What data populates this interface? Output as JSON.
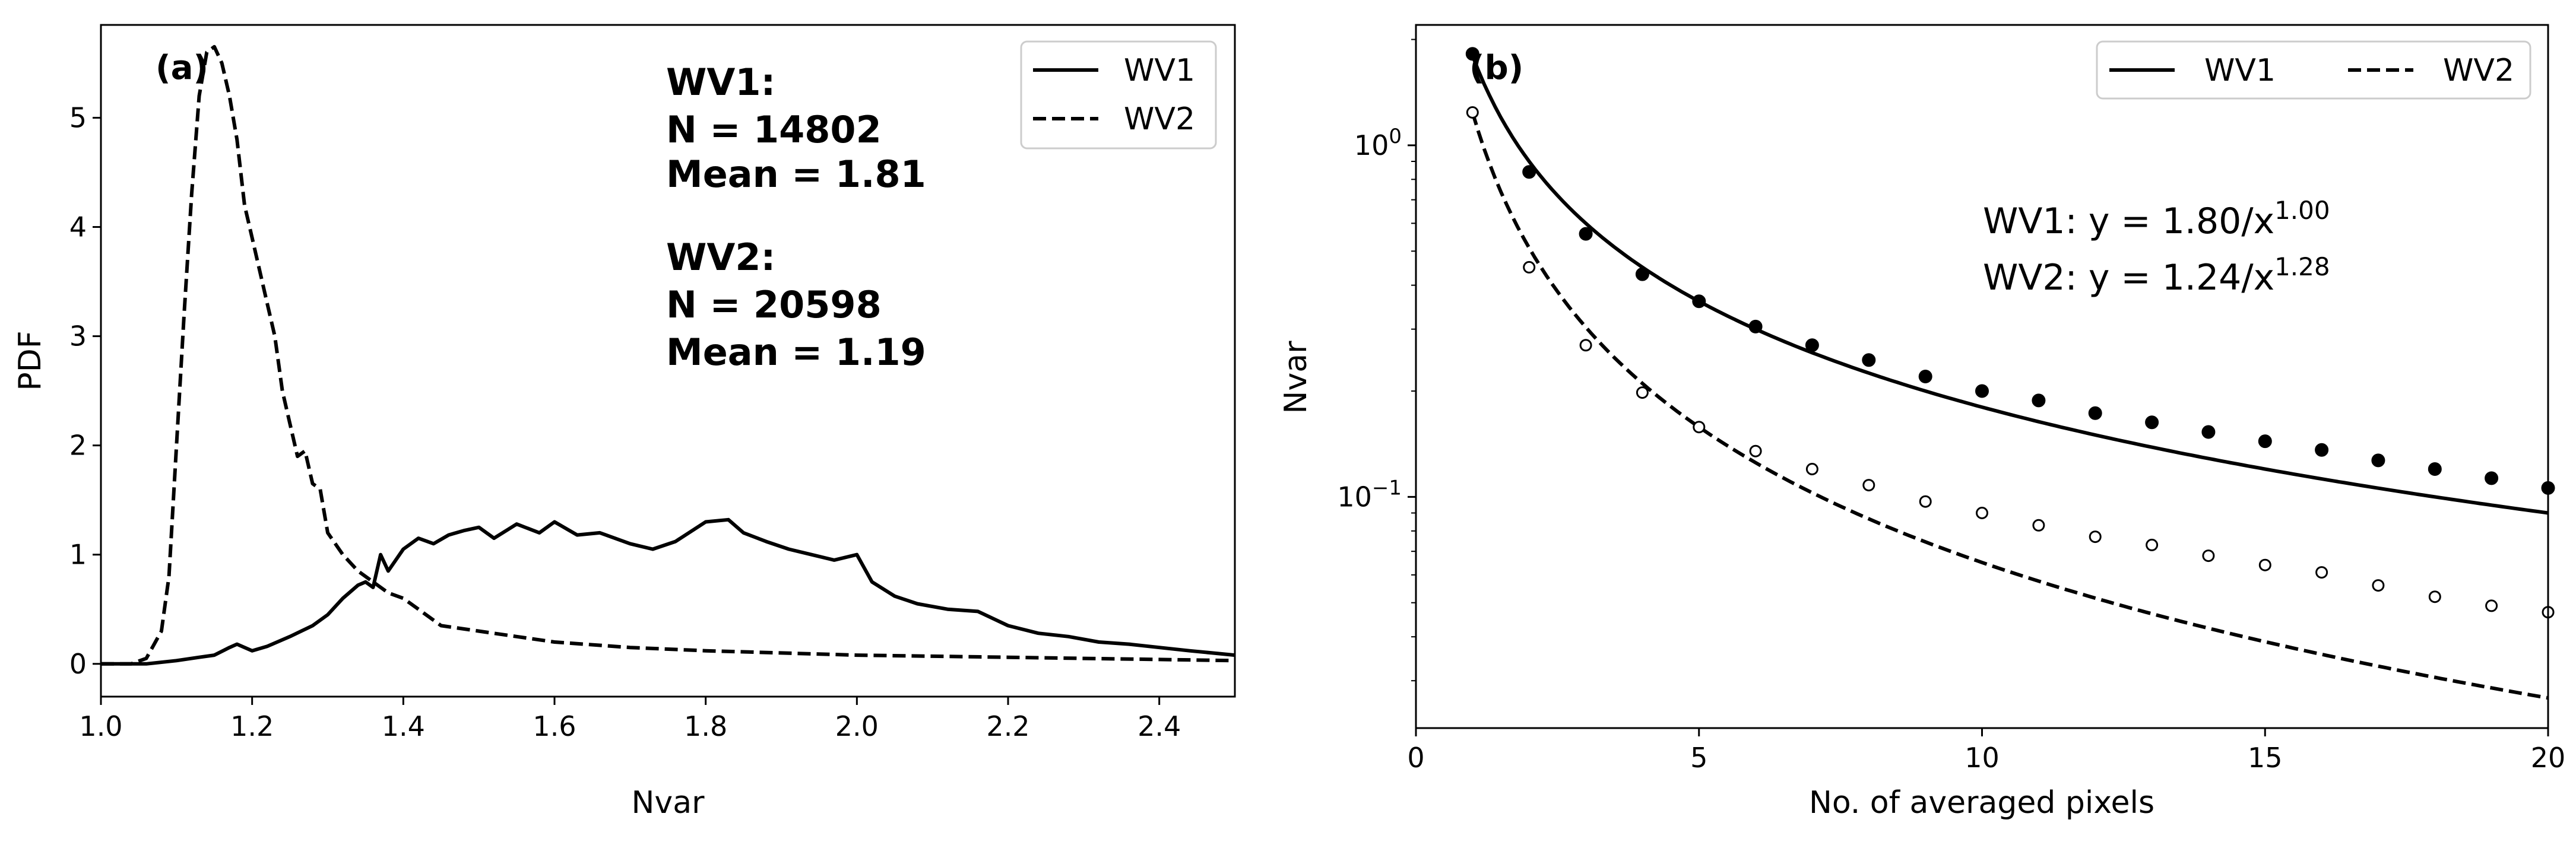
{
  "chart_data": [
    {
      "type": "line",
      "panel_label": "(a)",
      "xlabel": "Nvar",
      "ylabel": "PDF",
      "xlim": [
        1.0,
        2.5
      ],
      "ylim": [
        -0.3,
        5.85
      ],
      "xticks": [
        "1.0",
        "1.2",
        "1.4",
        "1.6",
        "1.8",
        "2.0",
        "2.2",
        "2.4"
      ],
      "yticks": [
        "0",
        "1",
        "2",
        "3",
        "4",
        "5"
      ],
      "legend": {
        "position": "top-right",
        "entries": [
          "WV1",
          "WV2"
        ]
      },
      "annotations": {
        "wv1_title": "WV1:",
        "wv1_n": "N = 14802",
        "wv1_mean": "Mean = 1.81",
        "wv2_title": "WV2:",
        "wv2_n": "N = 20598",
        "wv2_mean": "Mean = 1.19"
      },
      "series": [
        {
          "name": "WV1",
          "style": "solid",
          "x": [
            1.0,
            1.06,
            1.1,
            1.13,
            1.15,
            1.17,
            1.18,
            1.2,
            1.22,
            1.25,
            1.28,
            1.3,
            1.32,
            1.34,
            1.35,
            1.36,
            1.37,
            1.38,
            1.39,
            1.4,
            1.42,
            1.44,
            1.46,
            1.48,
            1.5,
            1.52,
            1.55,
            1.58,
            1.6,
            1.63,
            1.66,
            1.7,
            1.73,
            1.76,
            1.8,
            1.83,
            1.85,
            1.88,
            1.91,
            1.94,
            1.97,
            2.0,
            2.02,
            2.05,
            2.08,
            2.12,
            2.16,
            2.2,
            2.24,
            2.28,
            2.32,
            2.36,
            2.4,
            2.44,
            2.47,
            2.5
          ],
          "y": [
            0.0,
            0.0,
            0.03,
            0.06,
            0.08,
            0.15,
            0.18,
            0.12,
            0.16,
            0.25,
            0.35,
            0.45,
            0.6,
            0.72,
            0.75,
            0.7,
            1.0,
            0.85,
            0.95,
            1.05,
            1.15,
            1.1,
            1.18,
            1.22,
            1.25,
            1.15,
            1.28,
            1.2,
            1.3,
            1.18,
            1.2,
            1.1,
            1.05,
            1.12,
            1.3,
            1.32,
            1.2,
            1.12,
            1.05,
            1.0,
            0.95,
            1.0,
            0.75,
            0.62,
            0.55,
            0.5,
            0.48,
            0.35,
            0.28,
            0.25,
            0.2,
            0.18,
            0.15,
            0.12,
            0.1,
            0.08
          ]
        },
        {
          "name": "WV2",
          "style": "dashed",
          "x": [
            1.0,
            1.04,
            1.06,
            1.08,
            1.09,
            1.1,
            1.11,
            1.12,
            1.13,
            1.14,
            1.15,
            1.16,
            1.17,
            1.18,
            1.19,
            1.2,
            1.21,
            1.22,
            1.23,
            1.24,
            1.25,
            1.26,
            1.27,
            1.28,
            1.29,
            1.3,
            1.32,
            1.34,
            1.36,
            1.38,
            1.4,
            1.42,
            1.45,
            1.5,
            1.55,
            1.6,
            1.7,
            1.8,
            1.9,
            2.0,
            2.1,
            2.2,
            2.3,
            2.4,
            2.5
          ],
          "y": [
            0.0,
            0.0,
            0.05,
            0.3,
            0.8,
            2.0,
            3.2,
            4.3,
            5.2,
            5.6,
            5.65,
            5.5,
            5.2,
            4.8,
            4.2,
            3.9,
            3.6,
            3.3,
            3.0,
            2.5,
            2.2,
            1.9,
            1.95,
            1.65,
            1.6,
            1.2,
            1.0,
            0.85,
            0.75,
            0.65,
            0.6,
            0.5,
            0.35,
            0.3,
            0.25,
            0.2,
            0.15,
            0.12,
            0.1,
            0.08,
            0.07,
            0.06,
            0.05,
            0.04,
            0.03
          ]
        }
      ]
    },
    {
      "type": "scatter",
      "panel_label": "(b)",
      "xlabel": "No. of averaged pixels",
      "ylabel": "Nvar",
      "yscale": "log",
      "xlim": [
        0,
        20
      ],
      "ylim": [
        0.022,
        2.2
      ],
      "xticks": [
        "0",
        "5",
        "10",
        "15",
        "20"
      ],
      "yticks": [
        {
          "value": 1.0,
          "base": "10",
          "exp": "0"
        },
        {
          "value": 0.1,
          "base": "10",
          "exp": "−1"
        }
      ],
      "legend": {
        "position": "top-right",
        "entries": [
          "WV1",
          "WV2"
        ]
      },
      "fit_annotations": [
        {
          "prefix": "WV1: y = 1.80/x",
          "exp": "1.00"
        },
        {
          "prefix": "WV2: y = 1.24/x",
          "exp": "1.28"
        }
      ],
      "series": [
        {
          "name": "WV1",
          "marker": "filled",
          "fit": {
            "a": 1.8,
            "b": 1.0,
            "style": "solid"
          },
          "x": [
            1,
            2,
            3,
            4,
            5,
            6,
            7,
            8,
            9,
            10,
            11,
            12,
            13,
            14,
            15,
            16,
            17,
            18,
            19,
            20
          ],
          "y": [
            1.82,
            0.84,
            0.56,
            0.43,
            0.36,
            0.305,
            0.27,
            0.245,
            0.22,
            0.2,
            0.188,
            0.173,
            0.163,
            0.153,
            0.144,
            0.136,
            0.127,
            0.12,
            0.113,
            0.106
          ]
        },
        {
          "name": "WV2",
          "marker": "open",
          "fit": {
            "a": 1.24,
            "b": 1.28,
            "style": "dashed"
          },
          "x": [
            1,
            2,
            3,
            4,
            5,
            6,
            7,
            8,
            9,
            10,
            11,
            12,
            13,
            14,
            15,
            16,
            17,
            18,
            19,
            20
          ],
          "y": [
            1.24,
            0.45,
            0.27,
            0.198,
            0.158,
            0.135,
            0.12,
            0.108,
            0.097,
            0.09,
            0.083,
            0.077,
            0.073,
            0.068,
            0.064,
            0.061,
            0.056,
            0.052,
            0.049,
            0.047
          ]
        }
      ]
    }
  ]
}
